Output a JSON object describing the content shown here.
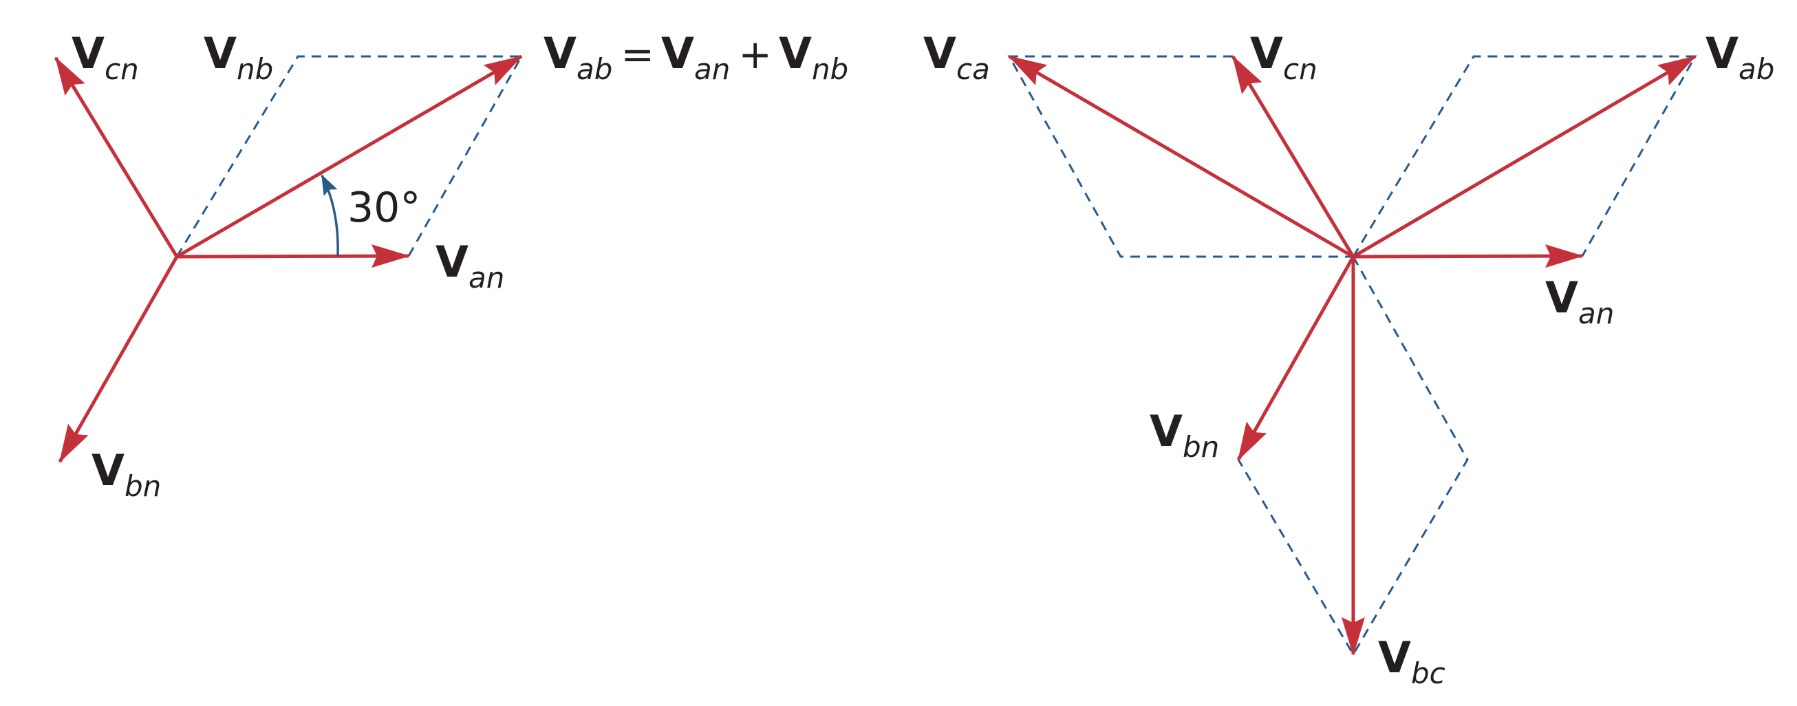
{
  "colors": {
    "phasor": "#c4313a",
    "construction": "#2a5a8c",
    "text": "#231f20"
  },
  "left_diagram": {
    "labels": {
      "vcn": {
        "main": "V",
        "sub": "cn"
      },
      "vnb": {
        "main": "V",
        "sub": "nb"
      },
      "van": {
        "main": "V",
        "sub": "an"
      },
      "vbn": {
        "main": "V",
        "sub": "bn"
      }
    },
    "equation": {
      "lhs": {
        "main": "V",
        "sub": "ab"
      },
      "equals": "=",
      "term1": {
        "main": "V",
        "sub": "an"
      },
      "plus": "+",
      "term2": {
        "main": "V",
        "sub": "nb"
      }
    },
    "angle_label": "30°"
  },
  "right_diagram": {
    "labels": {
      "vca": {
        "main": "V",
        "sub": "ca"
      },
      "vcn": {
        "main": "V",
        "sub": "cn"
      },
      "vab": {
        "main": "V",
        "sub": "ab"
      },
      "van": {
        "main": "V",
        "sub": "an"
      },
      "vbn": {
        "main": "V",
        "sub": "bn"
      },
      "vbc": {
        "main": "V",
        "sub": "bc"
      }
    }
  }
}
